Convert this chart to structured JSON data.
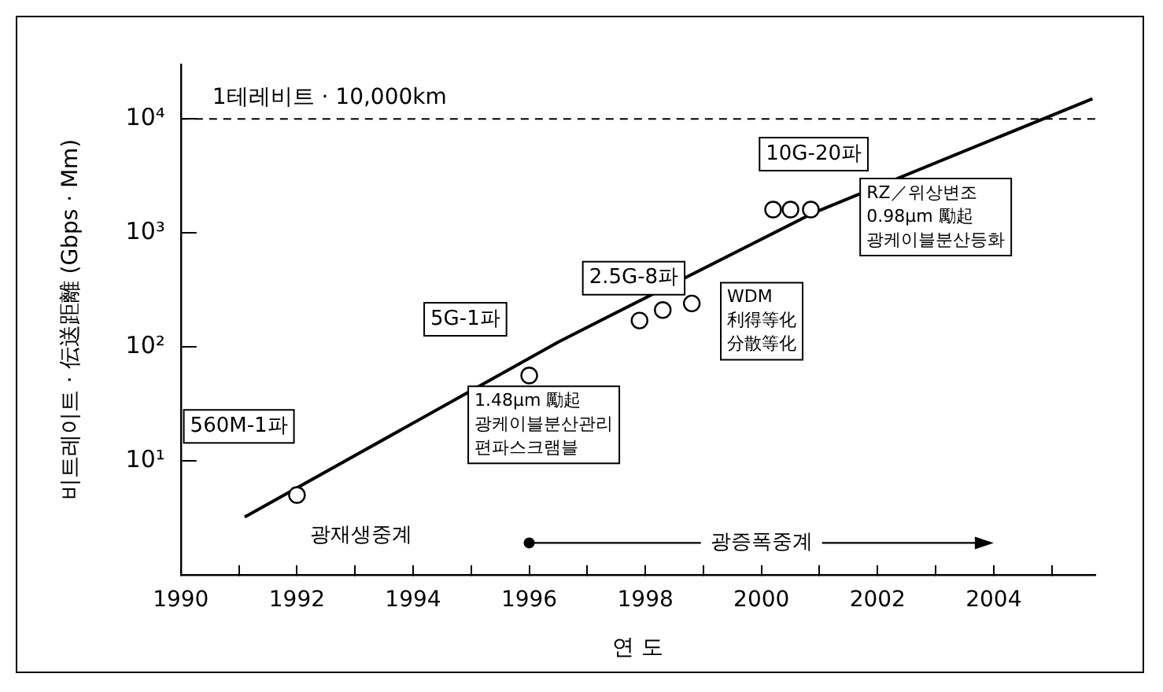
{
  "chart_data": {
    "type": "scatter",
    "xlabel": "연 도",
    "ylabel": "비트레이트 · 伝送距離 (Gbps · Mm)",
    "log": "y",
    "grid": false,
    "legend": false,
    "xlim": [
      1990,
      2005.75
    ],
    "xticks": [
      1990,
      {
        "value": 1991,
        "label": null
      },
      1992,
      {
        "value": 1993,
        "label": null
      },
      1994,
      {
        "value": 1995,
        "label": null
      },
      1996,
      {
        "value": 1997,
        "label": null
      },
      1998,
      {
        "value": 1999,
        "label": null
      },
      2000,
      {
        "value": 2001,
        "label": null
      },
      2002,
      {
        "value": 2003,
        "label": null
      },
      2004,
      {
        "value": 2005,
        "label": null
      }
    ],
    "ylim": [
      1,
      30000
    ],
    "yticks": [
      {
        "value": 10,
        "label": "10¹"
      },
      {
        "value": 100,
        "label": "10²"
      },
      {
        "value": 1000,
        "label": "10³"
      },
      {
        "value": 10000,
        "label": "10⁴"
      }
    ],
    "series": [
      {
        "color": "#000000",
        "marker": "circle",
        "x": [
          1992,
          1996,
          1997.9,
          1998.3,
          1998.8,
          2000.2,
          2000.5,
          2000.85
        ],
        "values": [
          5,
          56,
          170,
          210,
          240,
          1600,
          1600,
          1600
        ]
      },
      {
        "type": "line",
        "color": "#000000",
        "marker": "none",
        "line_style": "solid",
        "x": [
          1991.1,
          1996.5,
          2000.9,
          2005.7
        ],
        "values": [
          3.2,
          110,
          1500,
          15000
        ]
      }
    ],
    "ref_lines": [
      {
        "axis": "y",
        "value": 10000,
        "label": "1테레비트 · 10,000km",
        "line_style": "dashed"
      }
    ],
    "annotations": [
      "560M-1파",
      "광재생중계",
      "5G-1파",
      "2.5G-8파",
      "10G-20파",
      "RZ／위상변조\n0.98μm 勵起\n광케이블분산등화",
      "WDM",
      "利得等化",
      "分散等化",
      "1.48μm 勵起\n광케이블분산관리\n편파스크램블",
      "광증폭중계"
    ]
  }
}
